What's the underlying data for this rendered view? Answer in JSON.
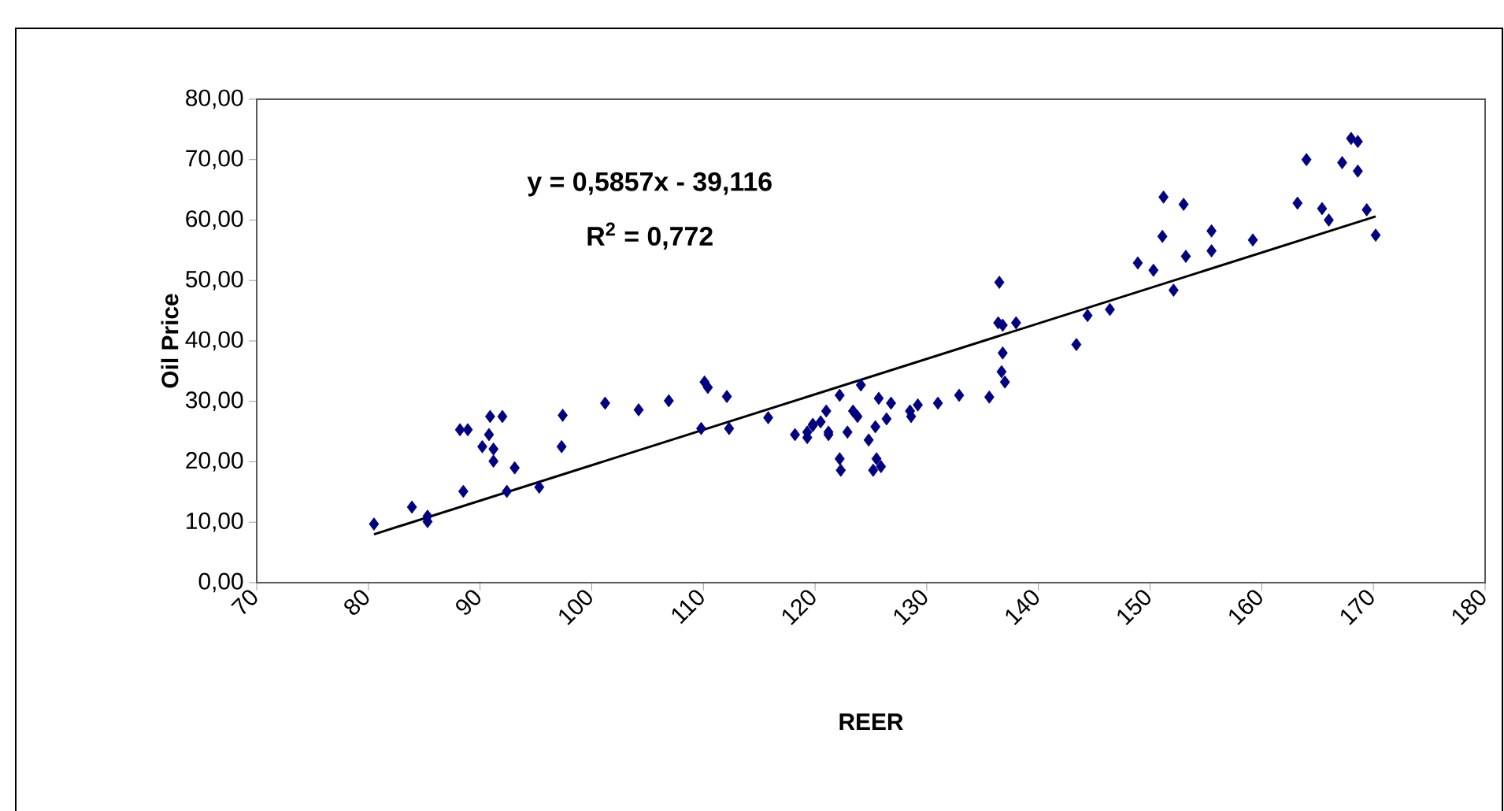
{
  "chart_data": {
    "type": "scatter",
    "xlabel": "REER",
    "ylabel": "Oil Price",
    "annotations": [
      "y = 0,5857x - 39,116",
      "R$^{2}$ = 0,772"
    ],
    "xlim": [
      70,
      180
    ],
    "xticks": [
      70,
      80,
      90,
      100,
      110,
      120,
      130,
      140,
      150,
      160,
      170,
      180
    ],
    "ylim": [
      0,
      80
    ],
    "yticks": [
      {
        "value": 0,
        "label": "0,00"
      },
      {
        "value": 10,
        "label": "10,00"
      },
      {
        "value": 20,
        "label": "20,00"
      },
      {
        "value": 30,
        "label": "30,00"
      },
      {
        "value": 40,
        "label": "40,00"
      },
      {
        "value": 50,
        "label": "50,00"
      },
      {
        "value": 60,
        "label": "60,00"
      },
      {
        "value": 70,
        "label": "70,00"
      },
      {
        "value": 80,
        "label": "80,00"
      }
    ],
    "grid": false,
    "series": [
      {
        "marker": "diamond",
        "color": "#000080",
        "x": [
          80.5,
          83.9,
          85.3,
          85.3,
          88.2,
          88.9,
          88.5,
          90.2,
          90.8,
          90.9,
          91.2,
          91.2,
          92.0,
          92.4,
          93.1,
          95.3,
          97.3,
          97.4,
          101.2,
          104.2,
          106.9,
          110.1,
          110.4,
          109.8,
          112.1,
          112.3,
          115.8,
          118.2,
          119.3,
          119.8,
          122.2,
          122.2,
          122.3,
          121.0,
          121.2,
          119.3,
          119.8,
          120.5,
          121.2,
          122.9,
          123.4,
          123.8,
          124.1,
          124.8,
          125.4,
          125.5,
          125.2,
          125.9,
          125.7,
          126.8,
          126.4,
          128.5,
          128.6,
          129.2,
          131.0,
          132.9,
          135.6,
          136.5,
          136.4,
          136.8,
          138.0,
          136.8,
          136.7,
          137.0,
          143.4,
          144.4,
          146.4,
          148.9,
          150.3,
          151.2,
          151.1,
          152.1,
          153.0,
          153.2,
          155.5,
          155.5,
          159.2,
          163.2,
          164.0,
          165.4,
          166.0,
          167.2,
          168.0,
          168.6,
          168.6,
          169.4,
          170.2
        ],
        "values": [
          9.7,
          12.5,
          11.0,
          10.1,
          25.3,
          25.3,
          15.1,
          22.5,
          24.5,
          27.5,
          22.1,
          20.1,
          27.5,
          15.1,
          19.0,
          15.8,
          22.5,
          27.7,
          29.7,
          28.6,
          30.1,
          33.2,
          32.3,
          25.5,
          30.8,
          25.5,
          27.3,
          24.5,
          24.9,
          26.2,
          31.0,
          20.5,
          18.6,
          28.4,
          24.9,
          24.0,
          26.0,
          26.6,
          24.5,
          24.9,
          28.4,
          27.5,
          32.7,
          23.6,
          25.8,
          20.5,
          18.6,
          19.2,
          30.5,
          29.7,
          27.1,
          28.4,
          27.5,
          29.4,
          29.7,
          31.0,
          30.7,
          49.7,
          43.0,
          42.6,
          43.0,
          38.0,
          34.9,
          33.2,
          39.4,
          44.2,
          45.2,
          52.9,
          51.7,
          63.8,
          57.3,
          48.4,
          62.6,
          54.0,
          58.2,
          54.9,
          56.7,
          62.8,
          70.0,
          61.9,
          60.0,
          69.5,
          73.5,
          73.0,
          68.1,
          61.7,
          57.5
        ]
      },
      {
        "type": "line",
        "marker": "none",
        "line_style": "solid",
        "color": "#000000",
        "x": [
          80.5,
          170.2
        ],
        "values": [
          8.0,
          60.6
        ]
      }
    ]
  }
}
